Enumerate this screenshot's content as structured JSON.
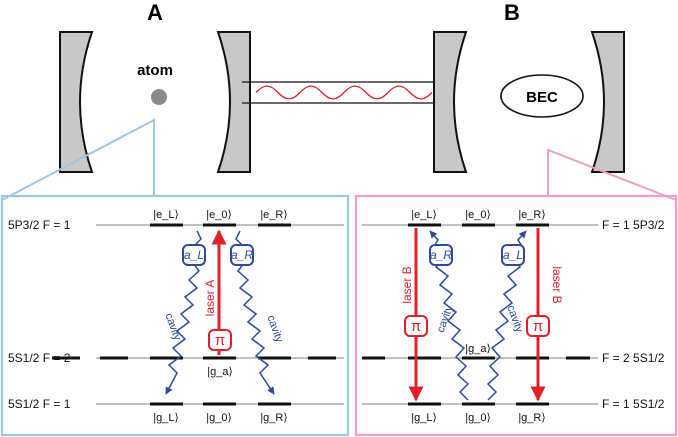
{
  "panels": {
    "a_label": "A",
    "b_label": "B"
  },
  "cavity": {
    "atom_label": "atom",
    "bec_label": "BEC"
  },
  "left_scheme": {
    "level_top": "5P3/2  F = 1",
    "level_mid": "5S1/2  F = 2",
    "level_bot": "5S1/2  F = 1",
    "kets_top": [
      "|e_L⟩",
      "|e_0⟩",
      "|e_R⟩"
    ],
    "ket_mid": "|g_a⟩",
    "kets_bot": [
      "|g_L⟩",
      "|g_0⟩",
      "|g_R⟩"
    ],
    "aL": "a_L",
    "aR": "a_R",
    "laser": "laser A",
    "pi": "π",
    "cavity_left": "cavity",
    "cavity_right": "cavity"
  },
  "right_scheme": {
    "level_top": "F = 1  5P3/2",
    "level_mid": "F = 2  5S1/2",
    "level_bot": "F = 1  5S1/2",
    "kets_top": [
      "|e_L⟩",
      "|e_0⟩",
      "|e_R⟩"
    ],
    "ket_mid": "|g_a⟩",
    "kets_bot": [
      "|g_L⟩",
      "|g_0⟩",
      "|g_R⟩"
    ],
    "aR": "a_R",
    "aL": "a_L",
    "laser_left": "laser B",
    "laser_right": "laser B",
    "pi": "π",
    "cavity_left": "cavity",
    "cavity_right": "cavity"
  },
  "colors": {
    "blue_box": "#9dc6e6",
    "pink_box": "#f0a0c4",
    "red": "#e0202a",
    "navy": "#2e4aa0",
    "mirror_fill": "#c8c8c8",
    "atom_dot": "#8a8a8a"
  }
}
